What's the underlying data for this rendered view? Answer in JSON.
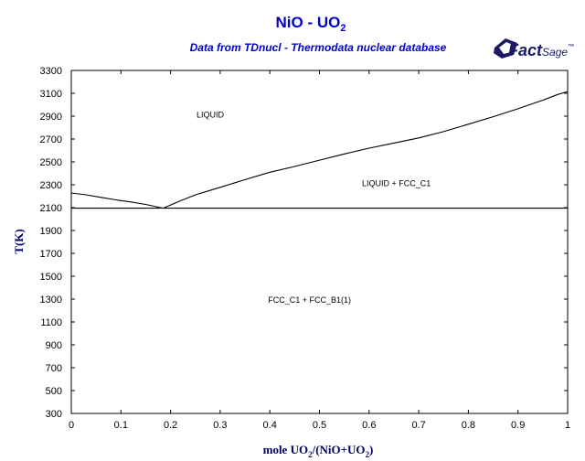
{
  "chart_data": {
    "type": "line",
    "title_main": "NiO - UO",
    "title_sub": "2",
    "subtitle": "Data from TDnucl - Thermodata nuclear database",
    "xlabel": {
      "parts": [
        {
          "text": "mole UO",
          "sub": false
        },
        {
          "text": "2",
          "sub": true
        },
        {
          "text": "/(NiO+UO",
          "sub": false
        },
        {
          "text": "2",
          "sub": true
        },
        {
          "text": ")",
          "sub": false
        }
      ]
    },
    "ylabel": "T(K)",
    "xlim": [
      0,
      1
    ],
    "ylim": [
      300,
      3300
    ],
    "xticks": [
      "0",
      "0.1",
      "0.2",
      "0.3",
      "0.4",
      "0.5",
      "0.6",
      "0.7",
      "0.8",
      "0.9",
      "1"
    ],
    "yticks": [
      "300",
      "500",
      "700",
      "900",
      "1100",
      "1300",
      "1500",
      "1700",
      "1900",
      "2100",
      "2300",
      "2500",
      "2700",
      "2900",
      "3100",
      "3300"
    ],
    "series": [
      {
        "values": [
          [
            0,
            2228
          ],
          [
            0.03,
            2212
          ],
          [
            0.06,
            2190
          ],
          [
            0.09,
            2168
          ],
          [
            0.12,
            2150
          ],
          [
            0.15,
            2128
          ],
          [
            0.18,
            2100
          ],
          [
            0.185,
            2095
          ]
        ]
      },
      {
        "values": [
          [
            0.185,
            2095
          ],
          [
            0.22,
            2160
          ],
          [
            0.25,
            2212
          ],
          [
            0.3,
            2278
          ],
          [
            0.35,
            2345
          ],
          [
            0.4,
            2410
          ],
          [
            0.45,
            2460
          ],
          [
            0.5,
            2515
          ],
          [
            0.55,
            2570
          ],
          [
            0.6,
            2620
          ],
          [
            0.65,
            2665
          ],
          [
            0.7,
            2710
          ],
          [
            0.75,
            2765
          ],
          [
            0.8,
            2830
          ],
          [
            0.85,
            2895
          ],
          [
            0.9,
            2965
          ],
          [
            0.95,
            3040
          ],
          [
            0.98,
            3090
          ],
          [
            1.0,
            3115
          ]
        ]
      },
      {
        "values": [
          [
            0,
            2095
          ],
          [
            1,
            2095
          ]
        ]
      }
    ],
    "annotations": [
      {
        "text": "LIQUID",
        "x": 0.28,
        "y": 2890
      },
      {
        "text": "LIQUID + FCC_C1",
        "x": 0.655,
        "y": 2290
      },
      {
        "text": "FCC_C1 + FCC_B1(1)",
        "x": 0.48,
        "y": 1270
      }
    ],
    "grid": false
  },
  "logo": {
    "part1": "Fact",
    "part2": "Sage",
    "mark": "™"
  }
}
